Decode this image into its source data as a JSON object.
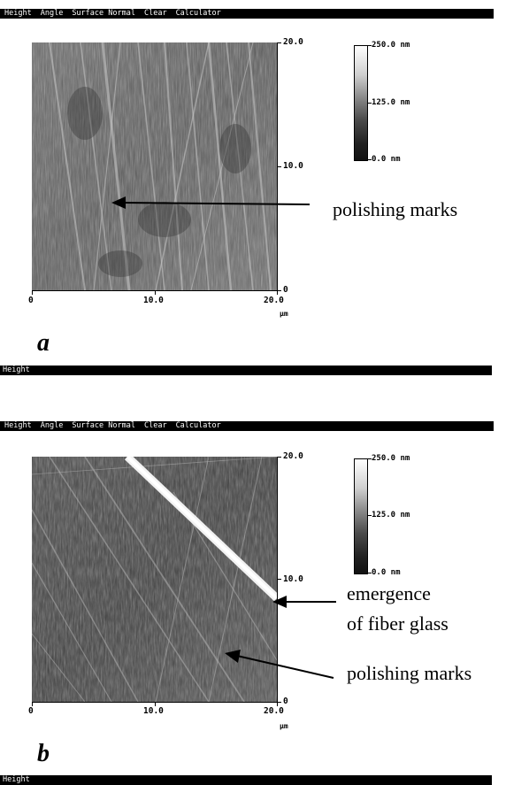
{
  "menu": [
    "Height",
    "Angle",
    "Surface Normal",
    "Clear",
    "Calculator"
  ],
  "panels": [
    {
      "letter": "a",
      "status": "Height",
      "x_ticks": [
        "0",
        "10.0",
        "20.0"
      ],
      "y_ticks": [
        "20.0",
        "10.0",
        "0"
      ],
      "x_unit": "µm",
      "colorbar": {
        "max": "250.0 nm",
        "mid": "125.0 nm",
        "min": "0.0 nm"
      },
      "annotations": [
        "polishing marks"
      ]
    },
    {
      "letter": "b",
      "status": "Height",
      "x_ticks": [
        "0",
        "10.0",
        "20.0"
      ],
      "y_ticks": [
        "20.0",
        "10.0",
        "0"
      ],
      "x_unit": "µm",
      "colorbar": {
        "max": "250.0 nm",
        "mid": "125.0 nm",
        "min": "0.0 nm"
      },
      "annotations": [
        "emergence",
        "of fiber glass",
        "polishing marks"
      ]
    }
  ]
}
